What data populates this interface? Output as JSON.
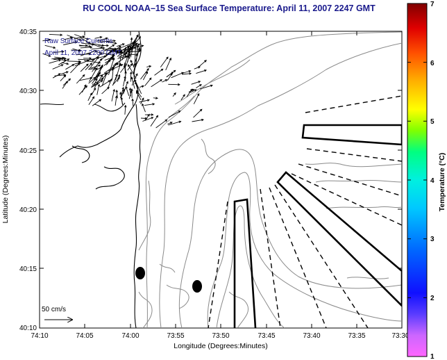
{
  "title": "RU COOL  NOAA–15  Sea Surface Temperature:  April 11, 2007 2247 GMT",
  "legend": {
    "line1": "Raw Surface Currents",
    "line2": "April 11, 2007 2200 GMT"
  },
  "scale_label": "50 cm/s",
  "axes": {
    "x_label": "Longitude (Degrees:Minutes)",
    "y_label": "Latitude (Degrees:Minutes)",
    "x_ticks": [
      "74:10",
      "74:05",
      "74:00",
      "73:55",
      "73:50",
      "73:45",
      "73:40",
      "73:35",
      "73:30"
    ],
    "y_ticks": [
      "40:35",
      "40:30",
      "40:25",
      "40:20",
      "40:15",
      "40:10"
    ]
  },
  "colorbar": {
    "label": "Temperature (°C)",
    "min": 1,
    "max": 7,
    "ticks": [
      "1",
      "2",
      "3",
      "4",
      "5",
      "6",
      "7"
    ]
  },
  "colors": {
    "title": "#1a1a8c",
    "contour": "#8a8a8a",
    "coast": "#000000"
  }
}
